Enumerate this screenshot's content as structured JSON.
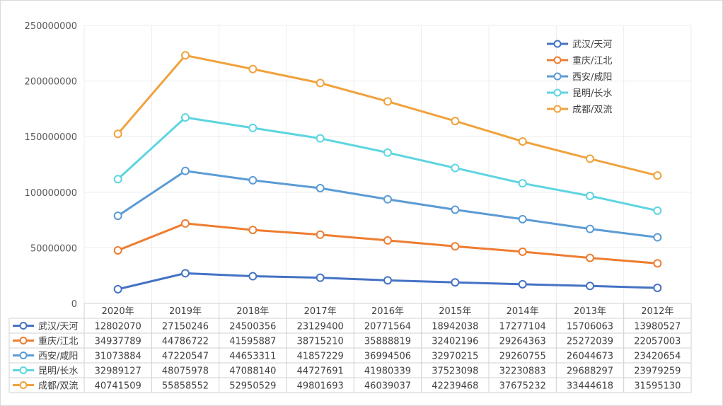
{
  "chart_data": {
    "type": "line",
    "title": "",
    "xlabel": "",
    "ylabel": "",
    "ylim": [
      0,
      250000000
    ],
    "yticks": [
      "0",
      "50000000",
      "100000000",
      "150000000",
      "200000000",
      "250000000"
    ],
    "grid": true,
    "legend_position": "top-right",
    "stacked": true,
    "categories": [
      "2020年",
      "2019年",
      "2018年",
      "2017年",
      "2016年",
      "2015年",
      "2014年",
      "2013年",
      "2012年"
    ],
    "series": [
      {
        "name": "武汉/天河",
        "color": "#4472C4",
        "values": [
          "12802070",
          "27150246",
          "24500356",
          "23129400",
          "20771564",
          "18942038",
          "17277104",
          "15706063",
          "13980527"
        ]
      },
      {
        "name": "重庆/江北",
        "color": "#ED7D31",
        "values": [
          "34937789",
          "44786722",
          "41595887",
          "38715210",
          "35888819",
          "32402196",
          "29264363",
          "25272039",
          "22057003"
        ]
      },
      {
        "name": "西安/咸阳",
        "color": "#5B9BD5",
        "values": [
          "31073884",
          "47220547",
          "44653311",
          "41857229",
          "36994506",
          "32970215",
          "29260755",
          "26044673",
          "23420654"
        ]
      },
      {
        "name": "昆明/长水",
        "color": "#5DD5E0",
        "values": [
          "32989127",
          "48075978",
          "47088140",
          "44727691",
          "41980339",
          "37523098",
          "32230883",
          "29688297",
          "23979259"
        ]
      },
      {
        "name": "成都/双流",
        "color": "#F0A23C",
        "values": [
          "40741509",
          "55858552",
          "52950529",
          "49801693",
          "46039037",
          "42239468",
          "37675232",
          "33444618",
          "31595130"
        ]
      }
    ]
  }
}
